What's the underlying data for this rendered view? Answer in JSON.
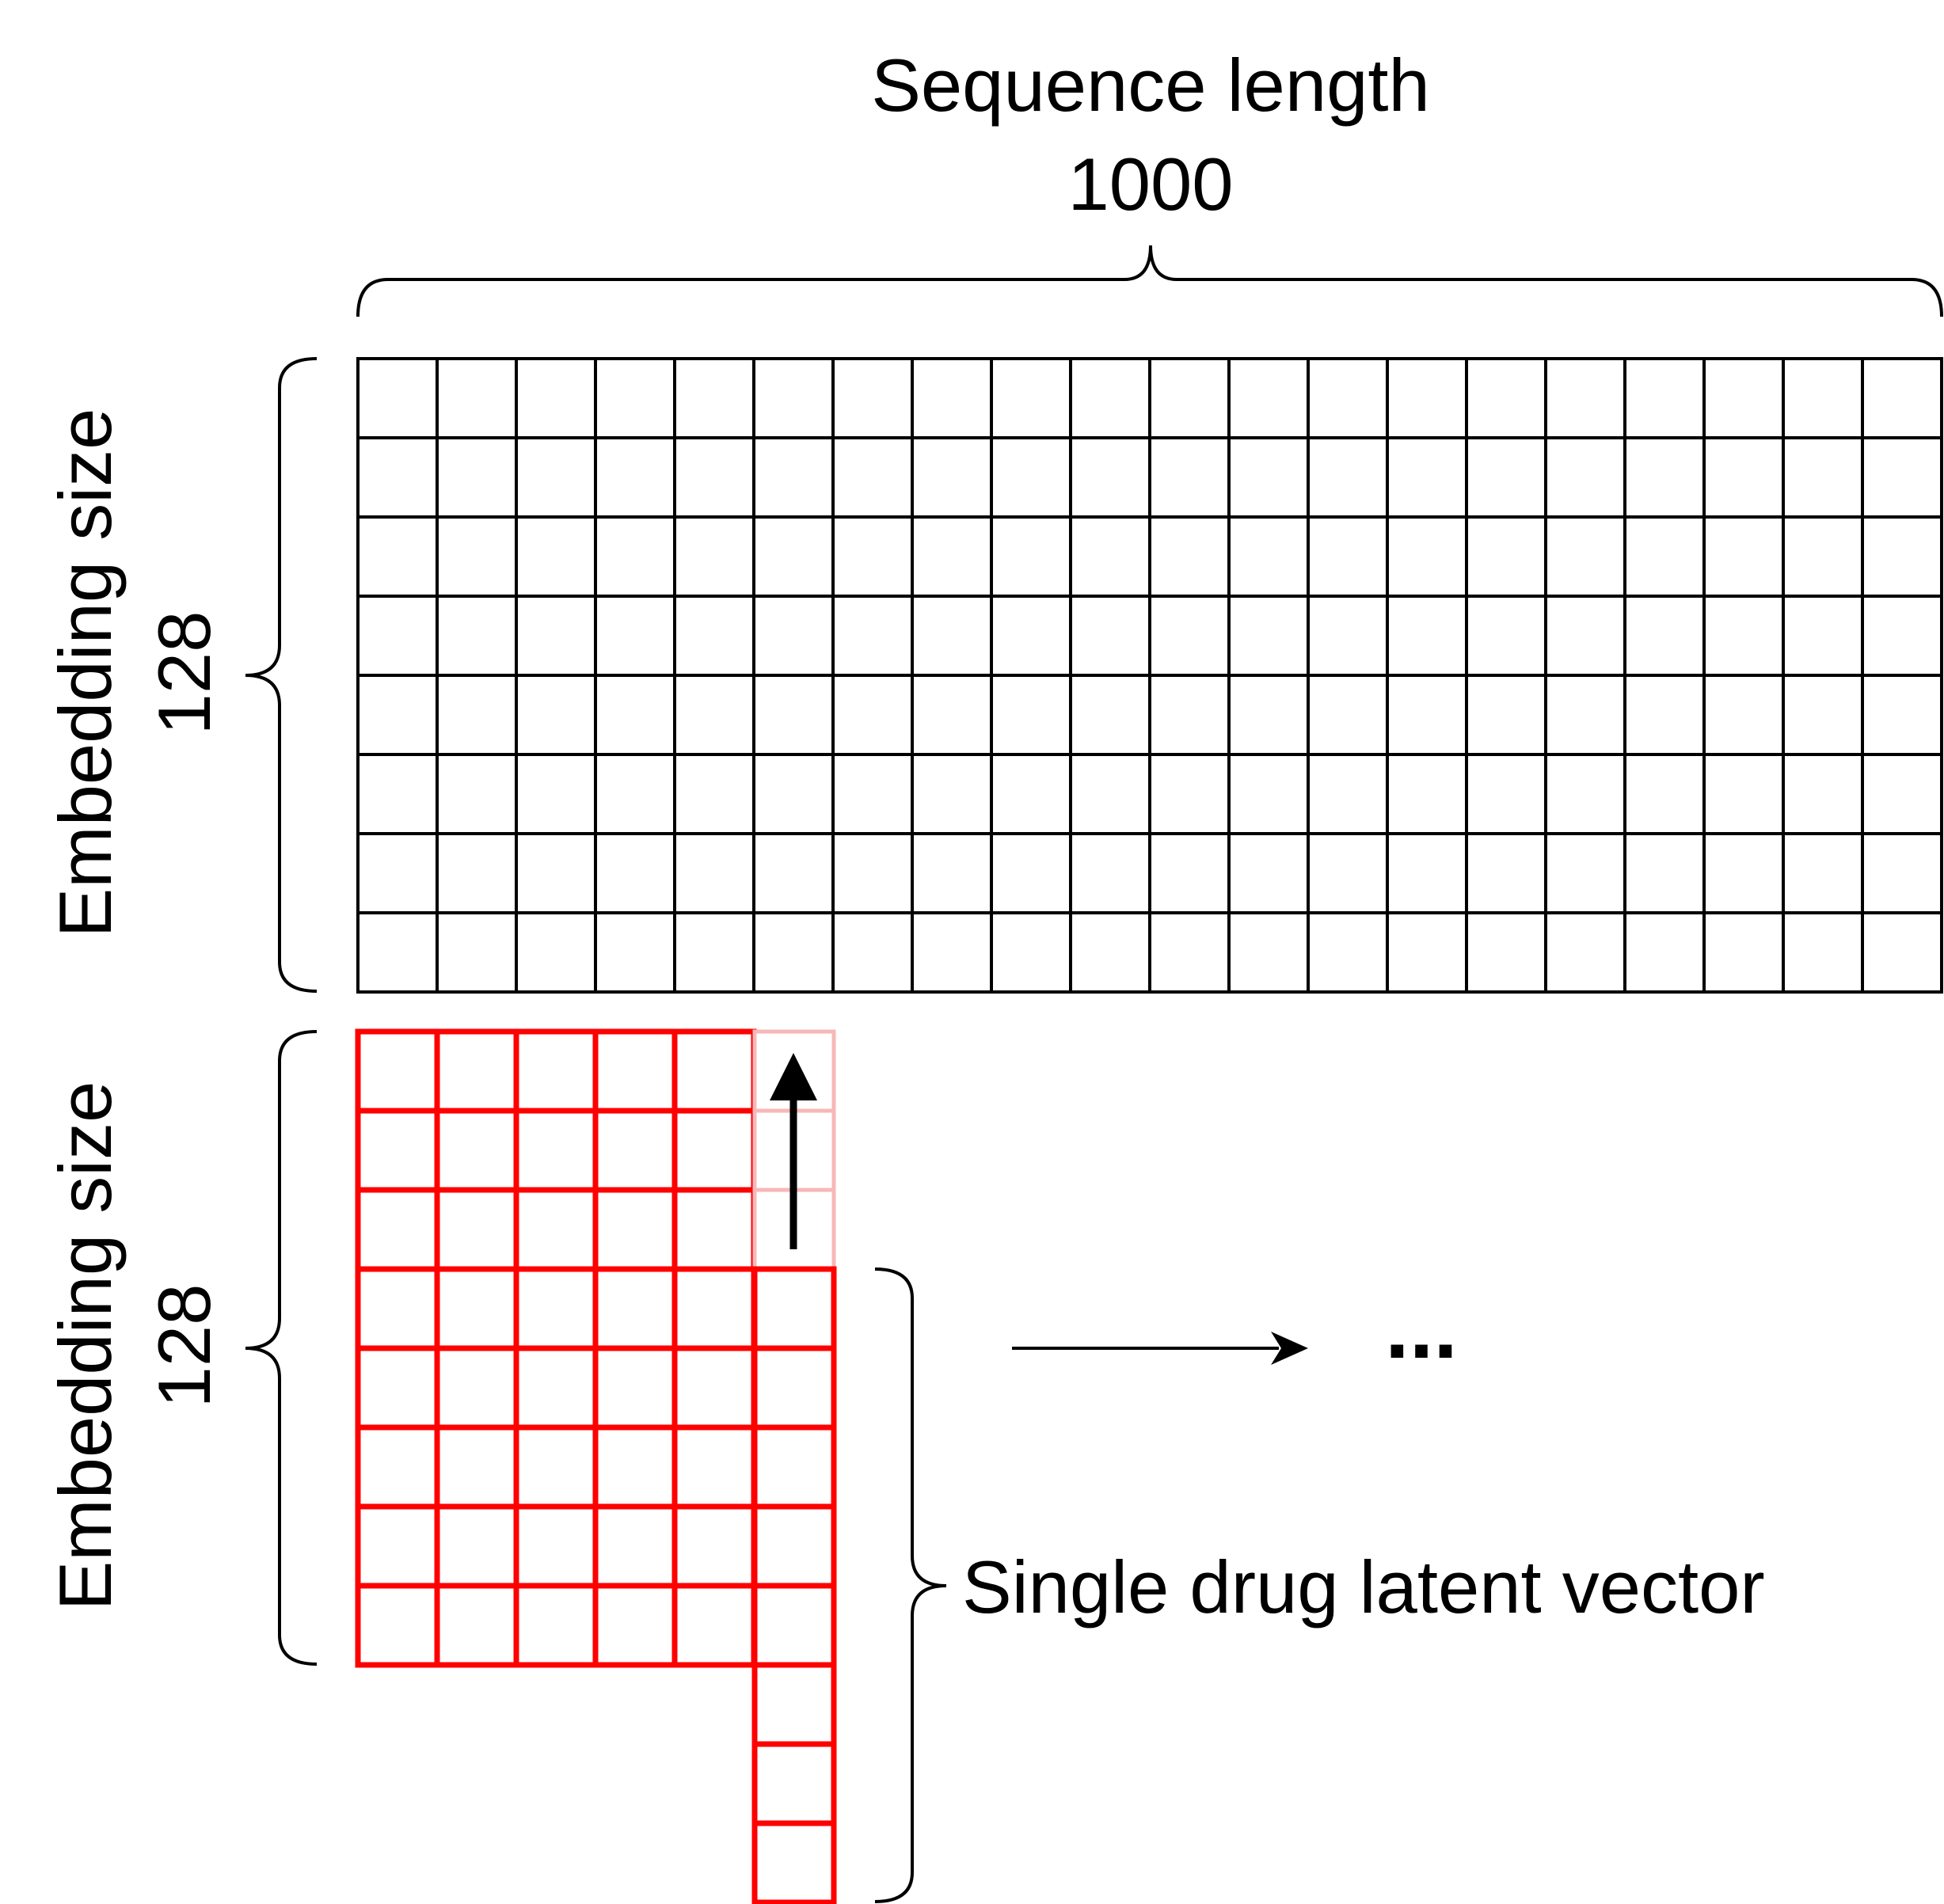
{
  "top_label": {
    "line1": "Sequence length",
    "line2": "1000"
  },
  "left_label_top": {
    "line1": "Embedding size",
    "line2": "128"
  },
  "left_label_bottom": {
    "line1": "Embedding size",
    "line2": "128"
  },
  "vector_label": "Single drug latent vector",
  "ellipsis": "...",
  "colors": {
    "grid": "#000000",
    "window": "#ff0000",
    "window_faded": "#f7b8b8",
    "arrow": "#000000"
  },
  "icons": {
    "arrow_up": "arrow-up-icon",
    "arrow_right": "arrow-right-icon"
  }
}
